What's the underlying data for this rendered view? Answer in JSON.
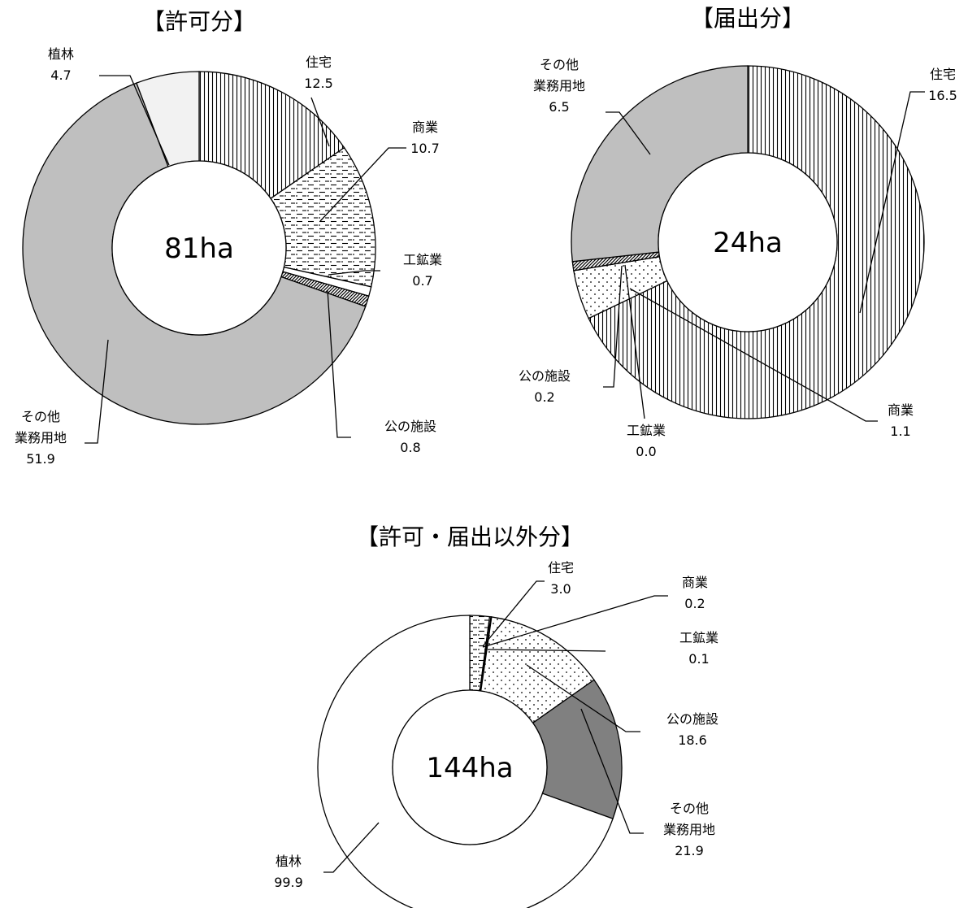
{
  "colors": {
    "gray": "#bfbfbf",
    "light_gray": "#f2f2f2",
    "dark_gray": "#808080",
    "white": "#ffffff",
    "line": "#000000"
  },
  "chart_data": [
    {
      "type": "pie",
      "title": "【許可分】",
      "center_label": "81ha",
      "categories": [
        "住宅",
        "商業",
        "工鉱業",
        "公の施設",
        "その他業務用地",
        "植林"
      ],
      "values": [
        12.5,
        10.7,
        0.7,
        0.8,
        51.9,
        4.7
      ],
      "labels": [
        {
          "lines": [
            "住宅"
          ],
          "value": "12.5"
        },
        {
          "lines": [
            "商業"
          ],
          "value": "10.7"
        },
        {
          "lines": [
            "工鉱業"
          ],
          "value": "0.7"
        },
        {
          "lines": [
            "公の施設"
          ],
          "value": "0.8"
        },
        {
          "lines": [
            "その他",
            "業務用地"
          ],
          "value": "51.9"
        },
        {
          "lines": [
            "植林"
          ],
          "value": "4.7"
        }
      ],
      "fills": [
        "vstripe",
        "dash",
        "white",
        "diag",
        "gray",
        "light_gray"
      ]
    },
    {
      "type": "pie",
      "title": "【届出分】",
      "center_label": "24ha",
      "categories": [
        "住宅",
        "商業",
        "工鉱業",
        "公の施設",
        "その他業務用地"
      ],
      "values": [
        16.5,
        1.1,
        0.0,
        0.2,
        6.5
      ],
      "labels": [
        {
          "lines": [
            "住宅"
          ],
          "value": "16.5"
        },
        {
          "lines": [
            "商業"
          ],
          "value": "1.1"
        },
        {
          "lines": [
            "工鉱業"
          ],
          "value": "0.0"
        },
        {
          "lines": [
            "公の施設"
          ],
          "value": "0.2"
        },
        {
          "lines": [
            "その他",
            "業務用地"
          ],
          "value": "6.5"
        }
      ],
      "fills": [
        "vstripe",
        "dots",
        "white",
        "diag",
        "gray"
      ]
    },
    {
      "type": "pie",
      "title": "【許可・届出以外分】",
      "center_label": "144ha",
      "categories": [
        "住宅",
        "商業",
        "工鉱業",
        "公の施設",
        "その他業務用地",
        "植林"
      ],
      "values": [
        3.0,
        0.2,
        0.1,
        18.6,
        21.9,
        99.9
      ],
      "labels": [
        {
          "lines": [
            "住宅"
          ],
          "value": "3.0"
        },
        {
          "lines": [
            "商業"
          ],
          "value": "0.2"
        },
        {
          "lines": [
            "工鉱業"
          ],
          "value": "0.1"
        },
        {
          "lines": [
            "公の施設"
          ],
          "value": "18.6"
        },
        {
          "lines": [
            "その他",
            "業務用地"
          ],
          "value": "21.9"
        },
        {
          "lines": [
            "植林"
          ],
          "value": "99.9"
        }
      ],
      "fills": [
        "dash",
        "vstripe",
        "white",
        "dots",
        "dark_gray",
        "white"
      ]
    }
  ]
}
